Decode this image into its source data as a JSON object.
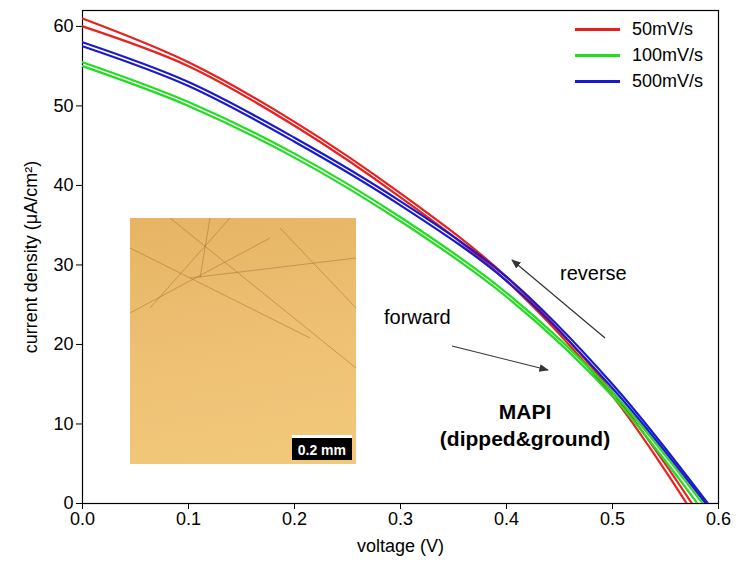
{
  "chart_data": {
    "type": "line",
    "x_label": "voltage (V)",
    "y_label": "current density (μA/cm²)",
    "xlim": [
      0,
      0.6
    ],
    "ylim": [
      0,
      62
    ],
    "xticks": [
      {
        "value": 0,
        "label": "0.0"
      },
      {
        "value": 0.1,
        "label": "0.1"
      },
      {
        "value": 0.2,
        "label": "0.2"
      },
      {
        "value": 0.3,
        "label": "0.3"
      },
      {
        "value": 0.4,
        "label": "0.4"
      },
      {
        "value": 0.5,
        "label": "0.5"
      },
      {
        "value": 0.6,
        "label": "0.6"
      }
    ],
    "yticks": [
      0,
      10,
      20,
      30,
      40,
      50,
      60
    ],
    "grid": false,
    "legend": "top-right",
    "annotations": [
      "reverse",
      "forward"
    ],
    "sample_label": "MAPI (dipped&ground)",
    "inset_scale_bar": "0.2 mm",
    "series": [
      {
        "name": "50mV/s",
        "sweep": "reverse",
        "color": "#e8201e",
        "x": [
          0,
          0.1,
          0.2,
          0.3,
          0.4,
          0.5,
          0.575
        ],
        "values": [
          61,
          55.5,
          48,
          39,
          28.5,
          14,
          0
        ]
      },
      {
        "name": "50mV/s",
        "sweep": "forward",
        "color": "#e8201e",
        "x": [
          0,
          0.1,
          0.2,
          0.3,
          0.4,
          0.5,
          0.57
        ],
        "values": [
          60,
          55,
          47.5,
          38.5,
          28,
          13.5,
          0
        ]
      },
      {
        "name": "100mV/s",
        "sweep": "reverse",
        "color": "#22dd22",
        "x": [
          0,
          0.1,
          0.2,
          0.3,
          0.4,
          0.5,
          0.585
        ],
        "values": [
          55.5,
          50.5,
          44,
          36,
          26.5,
          14,
          0
        ]
      },
      {
        "name": "100mV/s",
        "sweep": "forward",
        "color": "#22dd22",
        "x": [
          0,
          0.1,
          0.2,
          0.3,
          0.4,
          0.5,
          0.58
        ],
        "values": [
          55,
          50,
          43.5,
          35.5,
          26,
          13.5,
          0
        ]
      },
      {
        "name": "500mV/s",
        "sweep": "reverse",
        "color": "#1a1acc",
        "x": [
          0,
          0.1,
          0.2,
          0.3,
          0.4,
          0.5,
          0.59
        ],
        "values": [
          58,
          53,
          46,
          38,
          28.5,
          15,
          0
        ]
      },
      {
        "name": "500mV/s",
        "sweep": "forward",
        "color": "#1a1acc",
        "x": [
          0,
          0.1,
          0.2,
          0.3,
          0.4,
          0.5,
          0.588
        ],
        "values": [
          57.5,
          52.5,
          45.5,
          37.5,
          28,
          14.5,
          0
        ]
      }
    ]
  }
}
